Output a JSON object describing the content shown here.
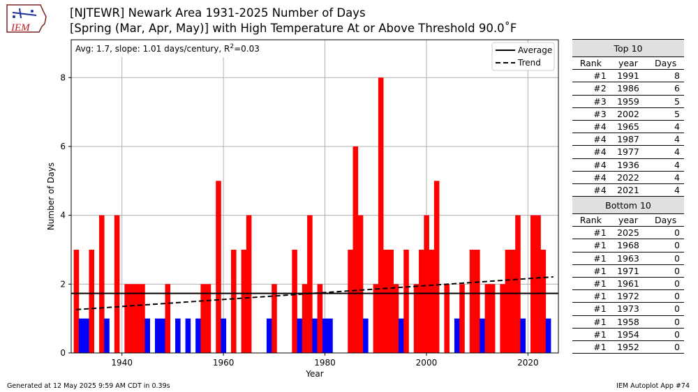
{
  "header": {
    "title_line1": "[NJTEWR] Newark Area 1931-2025 Number of Days",
    "title_line2": "[Spring (Mar, Apr, May)] with High Temperature At or Above Threshold 90.0˚F",
    "logo_text": "IEM"
  },
  "annotation": {
    "stats_prefix": "Avg: 1.7, slope: 1.01 days/century, R",
    "stats_sup": "2",
    "stats_suffix": "=0.03"
  },
  "colors": {
    "above": "#ff0000",
    "below": "#0000ff",
    "line": "#000000",
    "grid": "#b0b0b0"
  },
  "chart_data": {
    "type": "bar",
    "xlabel": "Year",
    "ylabel": "Number of Days",
    "xlim": [
      1930,
      2026
    ],
    "ylim": [
      0,
      9.1
    ],
    "xticks": [
      1940,
      1960,
      1980,
      2000,
      2020
    ],
    "yticks": [
      0,
      2,
      4,
      6,
      8
    ],
    "grid": true,
    "legend_position": "top-right",
    "legend": [
      "Average",
      "Trend"
    ],
    "average": 1.73,
    "trend": {
      "start": [
        1931,
        1.26
      ],
      "end": [
        2025,
        2.21
      ]
    },
    "years": [
      1931,
      1932,
      1933,
      1934,
      1935,
      1936,
      1937,
      1938,
      1939,
      1940,
      1941,
      1942,
      1943,
      1944,
      1945,
      1946,
      1947,
      1948,
      1949,
      1950,
      1951,
      1952,
      1953,
      1954,
      1955,
      1956,
      1957,
      1958,
      1959,
      1960,
      1961,
      1962,
      1963,
      1964,
      1965,
      1966,
      1967,
      1968,
      1969,
      1970,
      1971,
      1972,
      1973,
      1974,
      1975,
      1976,
      1977,
      1978,
      1979,
      1980,
      1981,
      1982,
      1983,
      1984,
      1985,
      1986,
      1987,
      1988,
      1989,
      1990,
      1991,
      1992,
      1993,
      1994,
      1995,
      1996,
      1997,
      1998,
      1999,
      2000,
      2001,
      2002,
      2003,
      2004,
      2005,
      2006,
      2007,
      2008,
      2009,
      2010,
      2011,
      2012,
      2013,
      2014,
      2015,
      2016,
      2017,
      2018,
      2019,
      2020,
      2021,
      2022,
      2023,
      2024,
      2025
    ],
    "values": [
      3,
      1,
      1,
      3,
      0,
      4,
      1,
      0,
      4,
      0,
      2,
      2,
      2,
      2,
      1,
      0,
      1,
      1,
      2,
      0,
      1,
      0,
      1,
      0,
      1,
      2,
      2,
      0,
      5,
      1,
      0,
      3,
      0,
      3,
      4,
      0,
      0,
      0,
      1,
      2,
      0,
      0,
      0,
      3,
      1,
      2,
      4,
      1,
      2,
      1,
      1,
      0,
      0,
      0,
      3,
      6,
      4,
      1,
      0,
      2,
      8,
      3,
      3,
      2,
      1,
      3,
      0,
      2,
      3,
      4,
      3,
      5,
      0,
      2,
      0,
      1,
      2,
      0,
      3,
      3,
      1,
      2,
      2,
      0,
      2,
      3,
      3,
      4,
      1,
      0,
      4,
      4,
      3,
      1,
      0
    ]
  },
  "top10": {
    "title": "Top 10",
    "headers": [
      "Rank",
      "year",
      "Days"
    ],
    "rows": [
      [
        "#1",
        "1991",
        "8"
      ],
      [
        "#2",
        "1986",
        "6"
      ],
      [
        "#3",
        "1959",
        "5"
      ],
      [
        "#3",
        "2002",
        "5"
      ],
      [
        "#4",
        "1965",
        "4"
      ],
      [
        "#4",
        "1987",
        "4"
      ],
      [
        "#4",
        "1977",
        "4"
      ],
      [
        "#4",
        "1936",
        "4"
      ],
      [
        "#4",
        "2022",
        "4"
      ],
      [
        "#4",
        "2021",
        "4"
      ]
    ]
  },
  "bottom10": {
    "title": "Bottom 10",
    "headers": [
      "Rank",
      "year",
      "Days"
    ],
    "rows": [
      [
        "#1",
        "2025",
        "0"
      ],
      [
        "#1",
        "1968",
        "0"
      ],
      [
        "#1",
        "1963",
        "0"
      ],
      [
        "#1",
        "1971",
        "0"
      ],
      [
        "#1",
        "1961",
        "0"
      ],
      [
        "#1",
        "1972",
        "0"
      ],
      [
        "#1",
        "1973",
        "0"
      ],
      [
        "#1",
        "1958",
        "0"
      ],
      [
        "#1",
        "1954",
        "0"
      ],
      [
        "#1",
        "1952",
        "0"
      ]
    ]
  },
  "footer": {
    "left": "Generated at 12 May 2025 9:59 AM CDT in 0.39s",
    "right": "IEM Autoplot App #74"
  }
}
